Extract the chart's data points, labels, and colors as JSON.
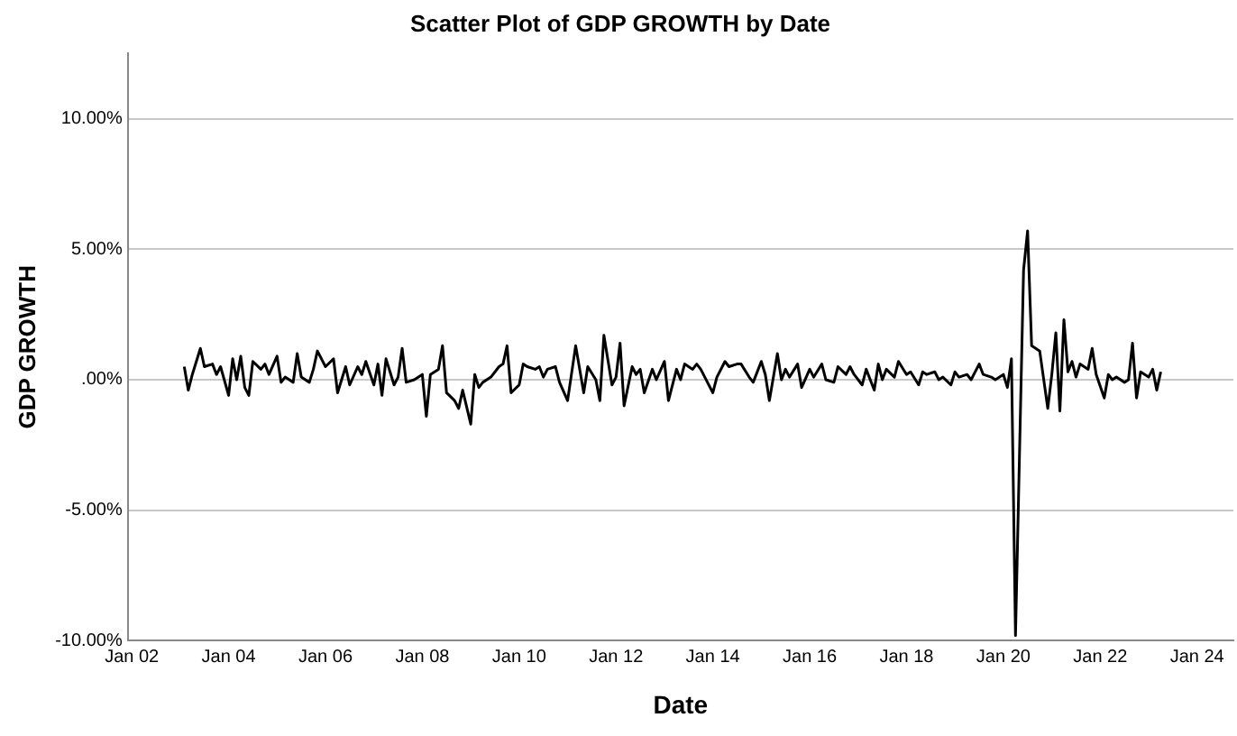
{
  "chart_data": {
    "type": "line",
    "title": "Scatter Plot of GDP GROWTH by Date",
    "xlabel": "Date",
    "ylabel": "GDP GROWTH",
    "xlim": [
      "2001-12",
      "2024-10"
    ],
    "xticks": [
      {
        "value": "2002-01",
        "label": "Jan 02"
      },
      {
        "value": "2004-01",
        "label": "Jan 04"
      },
      {
        "value": "2006-01",
        "label": "Jan 06"
      },
      {
        "value": "2008-01",
        "label": "Jan 08"
      },
      {
        "value": "2010-01",
        "label": "Jan 10"
      },
      {
        "value": "2012-01",
        "label": "Jan 12"
      },
      {
        "value": "2014-01",
        "label": "Jan 14"
      },
      {
        "value": "2016-01",
        "label": "Jan 16"
      },
      {
        "value": "2018-01",
        "label": "Jan 18"
      },
      {
        "value": "2020-01",
        "label": "Jan 20"
      },
      {
        "value": "2022-01",
        "label": "Jan 22"
      },
      {
        "value": "2024-01",
        "label": "Jan 24"
      }
    ],
    "ylim": [
      -10,
      12.5
    ],
    "yticks": [
      {
        "value": -10,
        "label": "-10.00%"
      },
      {
        "value": -5,
        "label": "-5.00%"
      },
      {
        "value": 0,
        "label": ".00%"
      },
      {
        "value": 5,
        "label": "5.00%"
      },
      {
        "value": 10,
        "label": "10.00%"
      }
    ],
    "grid": "y",
    "legend": false,
    "marker": "none",
    "line_style": "solid",
    "series": [
      {
        "color": "#000000",
        "x": [
          "2003-02",
          "2003-03",
          "2003-04",
          "2003-06",
          "2003-07",
          "2003-09",
          "2003-10",
          "2003-11",
          "2004-01",
          "2004-02",
          "2004-03",
          "2004-04",
          "2004-05",
          "2004-06",
          "2004-07",
          "2004-09",
          "2004-10",
          "2004-11",
          "2005-01",
          "2005-02",
          "2005-03",
          "2005-05",
          "2005-06",
          "2005-07",
          "2005-09",
          "2005-10",
          "2005-11",
          "2006-01",
          "2006-03",
          "2006-04",
          "2006-06",
          "2006-07",
          "2006-09",
          "2006-10",
          "2006-11",
          "2007-01",
          "2007-02",
          "2007-03",
          "2007-04",
          "2007-06",
          "2007-07",
          "2007-08",
          "2007-09",
          "2007-11",
          "2008-01",
          "2008-02",
          "2008-03",
          "2008-05",
          "2008-06",
          "2008-07",
          "2008-09",
          "2008-10",
          "2008-11",
          "2009-01",
          "2009-02",
          "2009-03",
          "2009-04",
          "2009-06",
          "2009-08",
          "2009-09",
          "2009-10",
          "2009-11",
          "2010-01",
          "2010-02",
          "2010-03",
          "2010-05",
          "2010-06",
          "2010-07",
          "2010-08",
          "2010-10",
          "2010-11",
          "2011-01",
          "2011-03",
          "2011-05",
          "2011-06",
          "2011-08",
          "2011-09",
          "2011-10",
          "2011-12",
          "2012-01",
          "2012-02",
          "2012-03",
          "2012-05",
          "2012-06",
          "2012-07",
          "2012-08",
          "2012-10",
          "2012-11",
          "2013-01",
          "2013-02",
          "2013-04",
          "2013-05",
          "2013-06",
          "2013-08",
          "2013-09",
          "2013-10",
          "2013-11",
          "2014-01",
          "2014-02",
          "2014-04",
          "2014-05",
          "2014-07",
          "2014-08",
          "2014-10",
          "2014-11",
          "2015-01",
          "2015-02",
          "2015-03",
          "2015-05",
          "2015-06",
          "2015-07",
          "2015-08",
          "2015-10",
          "2015-11",
          "2016-01",
          "2016-02",
          "2016-04",
          "2016-05",
          "2016-07",
          "2016-08",
          "2016-10",
          "2016-11",
          "2016-12",
          "2017-02",
          "2017-03",
          "2017-05",
          "2017-06",
          "2017-07",
          "2017-08",
          "2017-10",
          "2017-11",
          "2018-01",
          "2018-02",
          "2018-04",
          "2018-05",
          "2018-06",
          "2018-08",
          "2018-09",
          "2018-10",
          "2018-12",
          "2019-01",
          "2019-02",
          "2019-04",
          "2019-05",
          "2019-07",
          "2019-08",
          "2019-10",
          "2019-11",
          "2020-01",
          "2020-02",
          "2020-03",
          "2020-04",
          "2020-06",
          "2020-07",
          "2020-08",
          "2020-09",
          "2020-10",
          "2020-12",
          "2021-01",
          "2021-02",
          "2021-03",
          "2021-04",
          "2021-05",
          "2021-06",
          "2021-07",
          "2021-08",
          "2021-10",
          "2021-11",
          "2021-12",
          "2022-02",
          "2022-03",
          "2022-04",
          "2022-05",
          "2022-07",
          "2022-08",
          "2022-09",
          "2022-10",
          "2022-11",
          "2023-01",
          "2023-02",
          "2023-03",
          "2023-04"
        ],
        "values": [
          0.5,
          -0.4,
          0.2,
          1.2,
          0.5,
          0.6,
          0.2,
          0.5,
          -0.6,
          0.8,
          0.0,
          0.9,
          -0.3,
          -0.6,
          0.7,
          0.4,
          0.6,
          0.2,
          0.9,
          -0.1,
          0.1,
          -0.1,
          1.0,
          0.1,
          -0.1,
          0.4,
          1.1,
          0.5,
          0.8,
          -0.5,
          0.5,
          -0.2,
          0.5,
          0.2,
          0.7,
          -0.2,
          0.6,
          -0.6,
          0.8,
          -0.2,
          0.1,
          1.2,
          -0.1,
          0.0,
          0.2,
          -1.4,
          0.2,
          0.4,
          1.3,
          -0.5,
          -0.8,
          -1.1,
          -0.4,
          -1.7,
          0.2,
          -0.3,
          -0.1,
          0.1,
          0.5,
          0.6,
          1.3,
          -0.5,
          -0.2,
          0.6,
          0.5,
          0.4,
          0.5,
          0.1,
          0.4,
          0.5,
          -0.1,
          -0.8,
          1.3,
          -0.5,
          0.5,
          0.0,
          -0.8,
          1.7,
          -0.2,
          0.1,
          1.4,
          -1.0,
          0.5,
          0.2,
          0.4,
          -0.5,
          0.4,
          0.0,
          0.7,
          -0.8,
          0.4,
          0.0,
          0.6,
          0.4,
          0.6,
          0.4,
          0.1,
          -0.5,
          0.1,
          0.7,
          0.5,
          0.6,
          0.6,
          0.1,
          -0.1,
          0.7,
          0.2,
          -0.8,
          1.0,
          0.0,
          0.4,
          0.1,
          0.6,
          -0.3,
          0.4,
          0.1,
          0.6,
          0.0,
          -0.1,
          0.5,
          0.2,
          0.5,
          0.2,
          -0.2,
          0.4,
          -0.4,
          0.6,
          0.0,
          0.4,
          0.1,
          0.7,
          0.2,
          0.3,
          -0.2,
          0.3,
          0.2,
          0.3,
          0.0,
          0.1,
          -0.2,
          0.3,
          0.1,
          0.2,
          0.0,
          0.6,
          0.2,
          0.1,
          0.0,
          0.2,
          -0.3,
          0.8,
          -9.8,
          4.2,
          5.7,
          1.3,
          1.2,
          1.1,
          -1.1,
          0.2,
          1.8,
          -1.2,
          2.3,
          0.3,
          0.7,
          0.1,
          0.6,
          0.4,
          1.2,
          0.2,
          -0.7,
          0.2,
          0.0,
          0.1,
          -0.1,
          0.0,
          1.4,
          -0.7,
          0.3,
          0.1,
          0.4,
          -0.4,
          0.3
        ]
      }
    ]
  }
}
